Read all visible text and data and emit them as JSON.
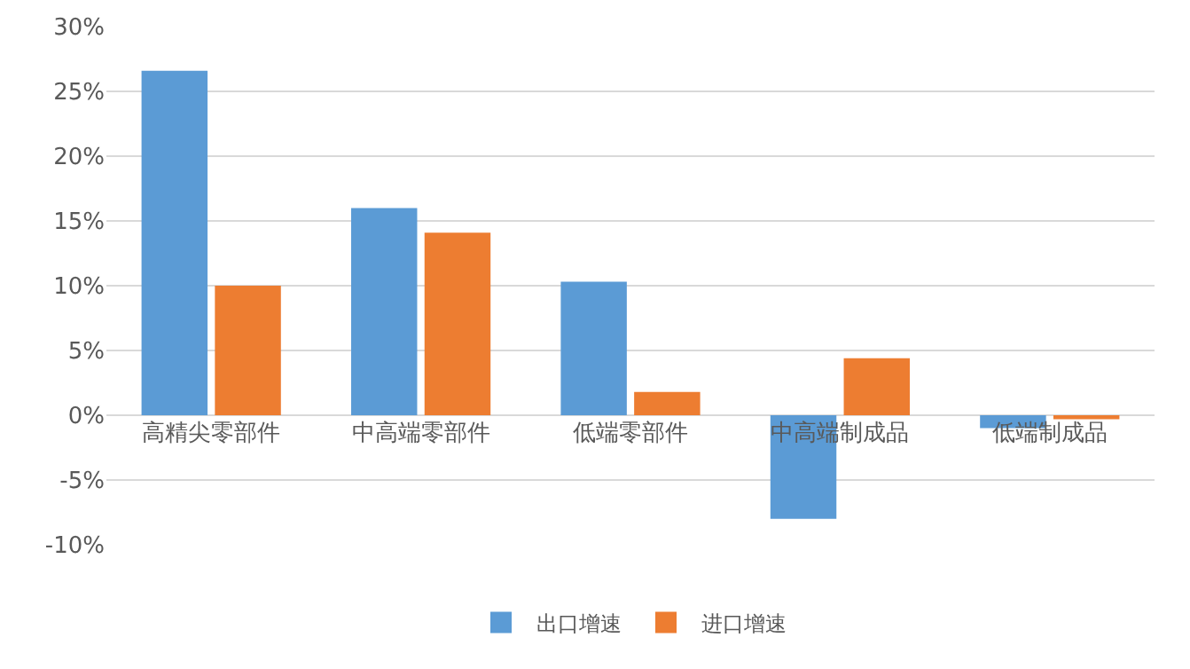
{
  "chart_data": {
    "type": "bar",
    "categories": [
      "高精尖零部件",
      "中高端零部件",
      "低端零部件",
      "中高端制成品",
      "低端制成品"
    ],
    "series": [
      {
        "name": "出口增速",
        "color": "#5b9bd5",
        "values": [
          26.6,
          16.0,
          10.3,
          -8.0,
          -1.0
        ]
      },
      {
        "name": "进口增速",
        "color": "#ed7d31",
        "values": [
          10.0,
          14.1,
          1.8,
          4.4,
          -0.3
        ]
      }
    ],
    "ylim": [
      -10,
      30
    ],
    "yticks": [
      {
        "value": -10,
        "label": "-10%"
      },
      {
        "value": -5,
        "label": "-5%"
      },
      {
        "value": 0,
        "label": "0%"
      },
      {
        "value": 5,
        "label": "5%"
      },
      {
        "value": 10,
        "label": "10%"
      },
      {
        "value": 15,
        "label": "15%"
      },
      {
        "value": 20,
        "label": "20%"
      },
      {
        "value": 25,
        "label": "25%"
      },
      {
        "value": 30,
        "label": "30%"
      }
    ],
    "grid": "y",
    "legend": "bottom"
  }
}
